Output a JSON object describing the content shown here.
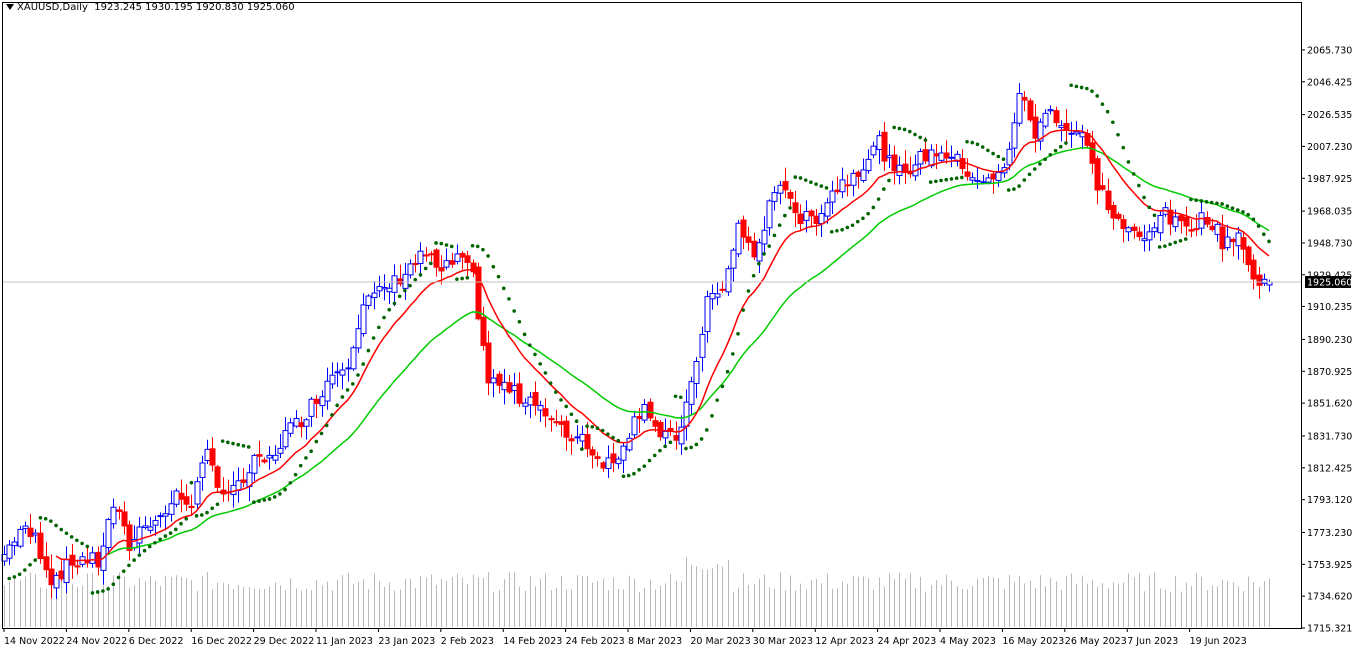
{
  "header": {
    "symbol": "XAUUSD,Daily",
    "ohlc": "1923.245 1930.195 1920.830 1925.060"
  },
  "colors": {
    "bull": "#0000ff",
    "bear": "#ff0000",
    "ma_fast": "#ff0000",
    "ma_slow": "#00cc00",
    "sar": "#006400",
    "volume": "#b8b8b8"
  },
  "chart_data": {
    "type": "candlestick",
    "symbol": "XAUUSD",
    "timeframe": "Daily",
    "last_price": 1925.06,
    "price_label": "1925.060",
    "ylim": [
      1715.321,
      2075.38
    ],
    "y_ticks": [
      "2065.730",
      "2046.425",
      "2026.535",
      "2007.230",
      "1987.925",
      "1968.035",
      "1948.730",
      "1929.425",
      "1910.235",
      "1890.230",
      "1870.925",
      "1851.620",
      "1831.730",
      "1812.425",
      "1793.120",
      "1773.230",
      "1753.925",
      "1734.620",
      "1715.321"
    ],
    "x_ticks": [
      "14 Nov 2022",
      "24 Nov 2022",
      "6 Dec 2022",
      "16 Dec 2022",
      "29 Dec 2022",
      "11 Jan 2023",
      "23 Jan 2023",
      "2 Feb 2023",
      "14 Feb 2023",
      "24 Feb 2023",
      "8 Mar 2023",
      "20 Mar 2023",
      "30 Mar 2023",
      "12 Apr 2023",
      "24 Apr 2023",
      "4 May 2023",
      "16 May 2023",
      "26 May 2023",
      "7 Jun 2023",
      "19 Jun 2023"
    ],
    "close_path": [
      [
        0,
        1760
      ],
      [
        3,
        1775
      ],
      [
        6,
        1770
      ],
      [
        9,
        1745
      ],
      [
        12,
        1752
      ],
      [
        15,
        1758
      ],
      [
        18,
        1755
      ],
      [
        21,
        1790
      ],
      [
        24,
        1765
      ],
      [
        27,
        1780
      ],
      [
        30,
        1782
      ],
      [
        33,
        1795
      ],
      [
        36,
        1792
      ],
      [
        39,
        1820
      ],
      [
        42,
        1798
      ],
      [
        45,
        1800
      ],
      [
        48,
        1815
      ],
      [
        51,
        1817
      ],
      [
        54,
        1833
      ],
      [
        57,
        1842
      ],
      [
        60,
        1855
      ],
      [
        63,
        1870
      ],
      [
        66,
        1878
      ],
      [
        69,
        1912
      ],
      [
        72,
        1918
      ],
      [
        75,
        1925
      ],
      [
        78,
        1935
      ],
      [
        81,
        1942
      ],
      [
        84,
        1930
      ],
      [
        87,
        1940
      ],
      [
        90,
        1928
      ],
      [
        93,
        1865
      ],
      [
        96,
        1862
      ],
      [
        99,
        1855
      ],
      [
        102,
        1855
      ],
      [
        105,
        1840
      ],
      [
        108,
        1832
      ],
      [
        111,
        1832
      ],
      [
        114,
        1818
      ],
      [
        117,
        1815
      ],
      [
        120,
        1835
      ],
      [
        123,
        1853
      ],
      [
        126,
        1830
      ],
      [
        129,
        1830
      ],
      [
        132,
        1860
      ],
      [
        135,
        1915
      ],
      [
        138,
        1918
      ],
      [
        141,
        1960
      ],
      [
        144,
        1940
      ],
      [
        147,
        1970
      ],
      [
        150,
        1985
      ],
      [
        153,
        1962
      ],
      [
        156,
        1965
      ],
      [
        159,
        1980
      ],
      [
        162,
        1988
      ],
      [
        165,
        1997
      ],
      [
        168,
        2010
      ],
      [
        171,
        1990
      ],
      [
        174,
        1995
      ],
      [
        177,
        2002
      ],
      [
        180,
        2005
      ],
      [
        183,
        1998
      ],
      [
        186,
        1990
      ],
      [
        189,
        1985
      ],
      [
        192,
        1992
      ],
      [
        195,
        2040
      ],
      [
        198,
        2015
      ],
      [
        201,
        2030
      ],
      [
        204,
        2018
      ],
      [
        207,
        2015
      ],
      [
        210,
        1985
      ],
      [
        213,
        1965
      ],
      [
        216,
        1955
      ],
      [
        219,
        1950
      ],
      [
        222,
        1968
      ],
      [
        225,
        1960
      ],
      [
        228,
        1960
      ],
      [
        231,
        1965
      ],
      [
        234,
        1950
      ],
      [
        237,
        1955
      ],
      [
        240,
        1925
      ],
      [
        243,
        1925
      ]
    ],
    "indicators": [
      "moving average (red)",
      "moving average (green)",
      "parabolic SAR (dots)",
      "volume bars"
    ]
  }
}
